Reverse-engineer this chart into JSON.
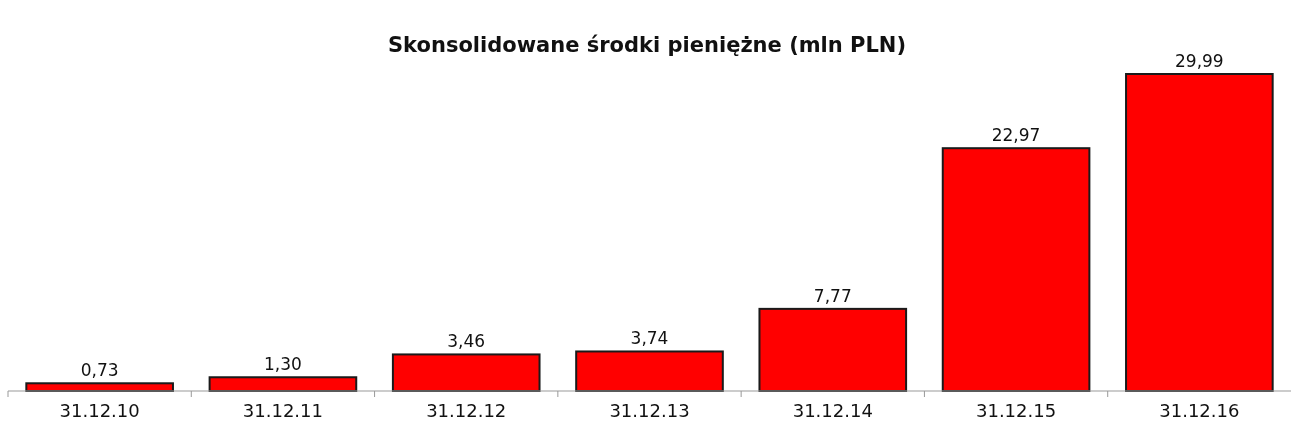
{
  "chart_data": {
    "type": "bar",
    "title": "Skonsolidowane środki pieniężne (mln PLN)",
    "categories": [
      "31.12.10",
      "31.12.11",
      "31.12.12",
      "31.12.13",
      "31.12.14",
      "31.12.15",
      "31.12.16"
    ],
    "values": [
      0.73,
      1.3,
      3.46,
      3.74,
      7.77,
      22.97,
      29.99
    ],
    "value_labels": [
      "0,73",
      "1,30",
      "3,46",
      "3,74",
      "7,77",
      "22,97",
      "29,99"
    ],
    "color": "#ff0000"
  }
}
